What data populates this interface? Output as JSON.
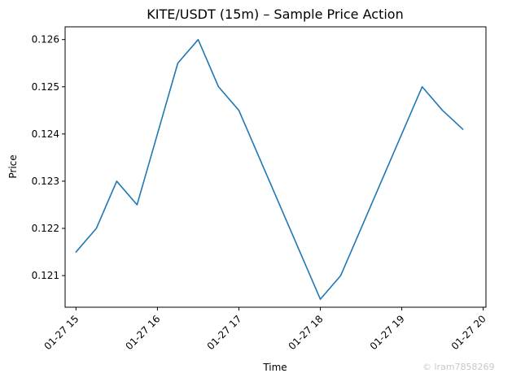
{
  "chart_data": {
    "type": "line",
    "title": "KITE/USDT (15m) – Sample Price Action",
    "xlabel": "Time",
    "ylabel": "Price",
    "grid": false,
    "x": [
      "2025-01-27 15:00",
      "2025-01-27 15:15",
      "2025-01-27 15:30",
      "2025-01-27 15:45",
      "2025-01-27 16:00",
      "2025-01-27 16:15",
      "2025-01-27 16:30",
      "2025-01-27 16:45",
      "2025-01-27 17:00",
      "2025-01-27 17:15",
      "2025-01-27 17:30",
      "2025-01-27 17:45",
      "2025-01-27 18:00",
      "2025-01-27 18:15",
      "2025-01-27 18:30",
      "2025-01-27 18:45",
      "2025-01-27 19:00",
      "2025-01-27 19:15",
      "2025-01-27 19:30",
      "2025-01-27 19:45"
    ],
    "x_tick_labels": [
      "01-27 15",
      "01-27 16",
      "01-27 17",
      "01-27 18",
      "01-27 19",
      "01-27 20"
    ],
    "y_tick_labels": [
      "0.121",
      "0.122",
      "0.123",
      "0.124",
      "0.125",
      "0.126"
    ],
    "xlim": [
      "2025-01-27 14:52",
      "2025-01-27 20:02"
    ],
    "ylim": [
      0.12033,
      0.12627
    ],
    "series": [
      {
        "color": "#1f77b4",
        "values": [
          0.1215,
          0.122,
          0.123,
          0.1225,
          0.124,
          0.1255,
          0.126,
          0.125,
          0.1245,
          0.1235,
          0.1225,
          0.1215,
          0.1205,
          0.121,
          0.122,
          0.123,
          0.124,
          0.125,
          0.1245,
          0.1241
        ]
      }
    ]
  },
  "watermark": "© lram7858269"
}
